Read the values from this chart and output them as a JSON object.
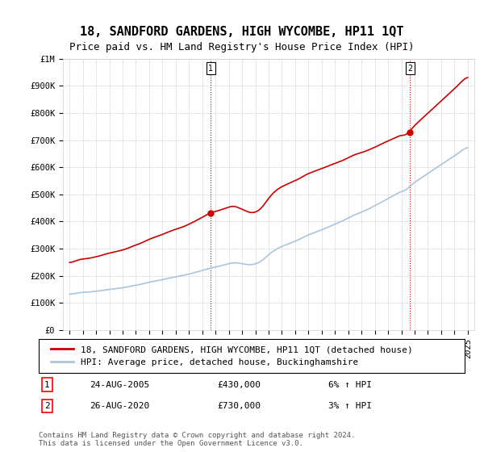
{
  "title": "18, SANDFORD GARDENS, HIGH WYCOMBE, HP11 1QT",
  "subtitle": "Price paid vs. HM Land Registry's House Price Index (HPI)",
  "xlabel": "",
  "ylabel": "",
  "ylim": [
    0,
    1000000
  ],
  "yticks": [
    0,
    100000,
    200000,
    300000,
    400000,
    500000,
    600000,
    700000,
    800000,
    900000,
    1000000
  ],
  "ytick_labels": [
    "£0",
    "£100K",
    "£200K",
    "£300K",
    "£400K",
    "£500K",
    "£600K",
    "£700K",
    "£800K",
    "£900K",
    "£1M"
  ],
  "xtick_years": [
    1995,
    1996,
    1997,
    1998,
    1999,
    2000,
    2001,
    2002,
    2003,
    2004,
    2005,
    2006,
    2007,
    2008,
    2009,
    2010,
    2011,
    2012,
    2013,
    2014,
    2015,
    2016,
    2017,
    2018,
    2019,
    2020,
    2021,
    2022,
    2023,
    2024,
    2025
  ],
  "hpi_color": "#aac4dd",
  "price_color": "#cc0000",
  "marker_color": "#cc0000",
  "sale1_x": 2005.65,
  "sale1_y": 430000,
  "sale2_x": 2020.65,
  "sale2_y": 730000,
  "sale1_label": "1",
  "sale2_label": "2",
  "vline1_x": 2005.65,
  "vline2_x": 2020.65,
  "vline_color": "#cc0000",
  "vline_style": ":",
  "legend_label_price": "18, SANDFORD GARDENS, HIGH WYCOMBE, HP11 1QT (detached house)",
  "legend_label_hpi": "HPI: Average price, detached house, Buckinghamshire",
  "annotation1_label": "1",
  "annotation1_date": "24-AUG-2005",
  "annotation1_price": "£430,000",
  "annotation1_hpi": "6% ↑ HPI",
  "annotation2_label": "2",
  "annotation2_date": "26-AUG-2020",
  "annotation2_price": "£730,000",
  "annotation2_hpi": "3% ↑ HPI",
  "footer": "Contains HM Land Registry data © Crown copyright and database right 2024.\nThis data is licensed under the Open Government Licence v3.0.",
  "bg_color": "#ffffff",
  "grid_color": "#dddddd",
  "title_fontsize": 11,
  "subtitle_fontsize": 9,
  "tick_fontsize": 7.5,
  "legend_fontsize": 8
}
